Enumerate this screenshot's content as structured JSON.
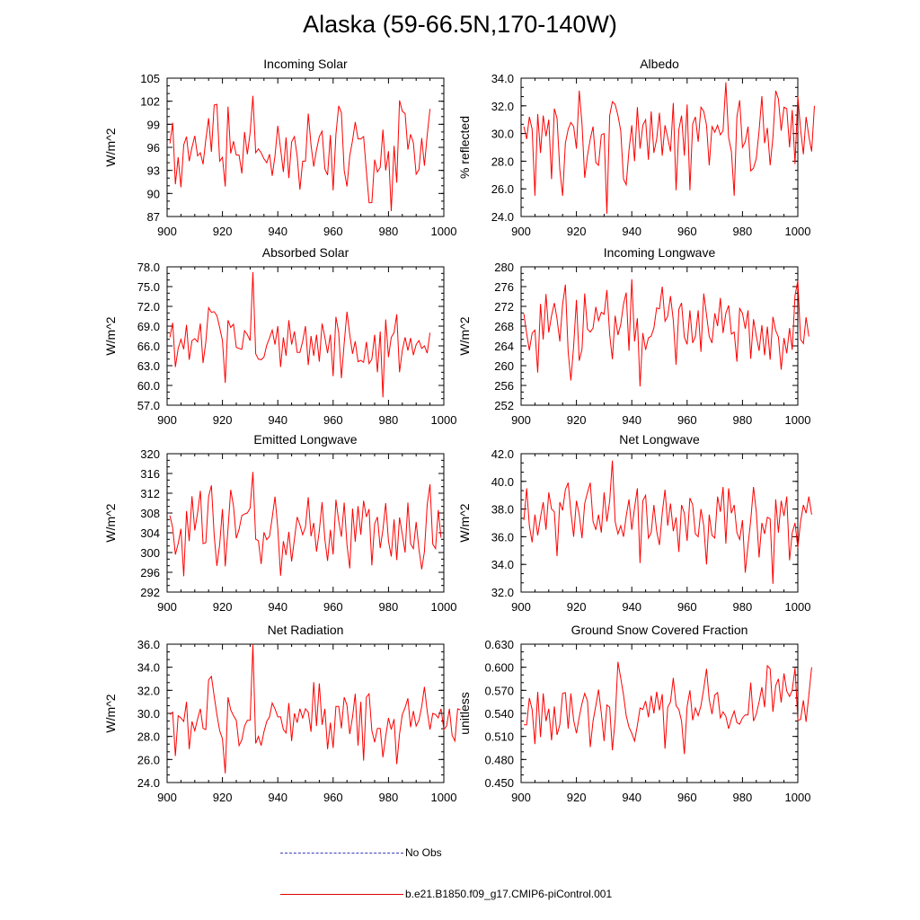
{
  "title": "Alaska (59-66.5N,170-140W)",
  "colors": {
    "series": "#ff0000",
    "obs": "#3b3bb8",
    "axis": "#000000"
  },
  "legend": {
    "obs_label": "No Obs",
    "model_label": "b.e21.B1850.f09_g17.CMIP6-piControl.001"
  },
  "chart_data": [
    {
      "type": "line",
      "title": "Incoming Solar",
      "ylabel": "W/m^2",
      "xlabel": "",
      "xlim": [
        900,
        1000
      ],
      "ylim": [
        87,
        105
      ],
      "xticks": [
        900,
        920,
        940,
        960,
        980,
        1000
      ],
      "xtick_labels": [
        "900",
        "920",
        "940",
        "960",
        "980",
        "1000"
      ],
      "yticks": [
        87,
        90,
        93,
        96,
        99,
        102,
        105
      ],
      "ytick_labels": [
        "87",
        "90",
        "93",
        "96",
        "99",
        "102",
        "105"
      ],
      "x_start": 901,
      "values": [
        96.5,
        99.2,
        91.2,
        94.7,
        90.8,
        96.3,
        97.4,
        94.2,
        96.0,
        97.5,
        94.9,
        95.3,
        93.8,
        97.0,
        99.8,
        95.4,
        101.5,
        101.6,
        94.2,
        94.7,
        90.9,
        101.3,
        95.2,
        96.8,
        95.0,
        95.0,
        92.6,
        98.0,
        95.1,
        97.9,
        102.7,
        95.3,
        95.8,
        95.3,
        94.5,
        94.0,
        95.1,
        92.3,
        94.9,
        98.8,
        95.8,
        92.8,
        97.3,
        92.0,
        96.7,
        97.4,
        94.8,
        90.5,
        94.2,
        94.2,
        100.4,
        96.3,
        93.5,
        95.7,
        97.4,
        98.1,
        93.2,
        92.4,
        97.6,
        90.4,
        97.7,
        101.4,
        100.5,
        93.0,
        90.9,
        94.9,
        96.9,
        99.3,
        97.1,
        97.1,
        97.4,
        92.9,
        88.8,
        88.8,
        94.4,
        92.8,
        93.4,
        98.3,
        93.0,
        95.5,
        87.7,
        96.2,
        91.4,
        102.1,
        100.7,
        100.4,
        95.7,
        97.7,
        96.6,
        92.5,
        93.1,
        97.2,
        93.6,
        97.6,
        101.0
      ]
    },
    {
      "type": "line",
      "title": "Albedo",
      "ylabel": "% reflected",
      "xlabel": "",
      "xlim": [
        900,
        1000
      ],
      "ylim": [
        24,
        34
      ],
      "xticks": [
        900,
        920,
        940,
        960,
        980,
        1000
      ],
      "xtick_labels": [
        "900",
        "920",
        "940",
        "960",
        "980",
        "1000"
      ],
      "yticks": [
        24,
        26,
        28,
        30,
        32,
        34
      ],
      "ytick_labels": [
        "24.0",
        "26.0",
        "28.0",
        "30.0",
        "32.0",
        "34.0"
      ],
      "x_start": 901,
      "values": [
        30.5,
        29.6,
        31.2,
        30.3,
        25.5,
        31.4,
        28.6,
        31.3,
        29.8,
        31.0,
        26.7,
        31.8,
        31.1,
        27.4,
        25.5,
        29.3,
        30.3,
        30.8,
        30.5,
        28.9,
        33.1,
        30.7,
        26.8,
        28.4,
        29.6,
        30.5,
        27.9,
        27.7,
        29.9,
        30.0,
        24.2,
        31.3,
        32.3,
        32.1,
        31.3,
        30.2,
        26.7,
        26.3,
        28.8,
        30.6,
        28.0,
        31.9,
        28.9,
        30.6,
        31.0,
        28.1,
        31.6,
        28.6,
        29.6,
        31.5,
        28.4,
        30.6,
        29.7,
        28.7,
        32.2,
        25.9,
        30.3,
        31.3,
        28.4,
        32.1,
        25.9,
        30.7,
        31.2,
        29.4,
        31.9,
        31.6,
        30.6,
        27.7,
        30.5,
        30.1,
        30.6,
        29.9,
        30.2,
        33.7,
        29.7,
        28.7,
        25.5,
        31.2,
        32.4,
        29.0,
        29.4,
        30.5,
        27.3,
        27.5,
        28.2,
        30.2,
        32.7,
        29.3,
        30.4,
        27.7,
        29.7,
        33.1,
        32.5,
        30.2,
        31.9,
        31.8,
        29.0,
        31.7,
        27.8,
        32.7,
        30.3,
        28.5,
        31.2,
        29.8,
        28.7,
        32.0
      ]
    },
    {
      "type": "line",
      "title": "Absorbed Solar",
      "ylabel": "W/m^2",
      "xlabel": "",
      "xlim": [
        900,
        1000
      ],
      "ylim": [
        57,
        78
      ],
      "xticks": [
        900,
        920,
        940,
        960,
        980,
        1000
      ],
      "xtick_labels": [
        "900",
        "920",
        "940",
        "960",
        "980",
        "1000"
      ],
      "yticks": [
        57,
        60,
        63,
        66,
        69,
        72,
        75,
        78
      ],
      "ytick_labels": [
        "57.0",
        "60.0",
        "63.0",
        "66.0",
        "69.0",
        "72.0",
        "75.0",
        "78.0"
      ],
      "x_start": 901,
      "values": [
        67.3,
        69.5,
        62.8,
        65.6,
        67.0,
        65.5,
        69.2,
        63.9,
        66.8,
        67.1,
        66.6,
        69.4,
        63.4,
        66.6,
        71.8,
        71.1,
        71.2,
        70.6,
        68.8,
        66.8,
        60.4,
        69.9,
        68.8,
        69.3,
        65.8,
        65.6,
        65.5,
        68.3,
        67.7,
        66.8,
        77.2,
        64.8,
        64.0,
        63.9,
        64.3,
        66.1,
        67.2,
        68.4,
        66.2,
        69.0,
        62.8,
        67.3,
        64.5,
        69.9,
        66.2,
        68.2,
        65.0,
        65.0,
        66.7,
        69.0,
        63.1,
        67.5,
        64.5,
        67.7,
        63.6,
        69.4,
        67.3,
        64.9,
        67.7,
        61.4,
        70.4,
        68.0,
        61.1,
        66.4,
        71.2,
        67.7,
        64.8,
        66.7,
        63.6,
        63.8,
        63.5,
        66.6,
        63.3,
        64.0,
        67.7,
        62.0,
        68.2,
        58.2,
        70.0,
        64.3,
        67.3,
        68.0,
        70.8,
        62.0,
        65.3,
        67.3,
        65.3,
        67.2,
        64.6,
        66.2,
        66.8,
        65.6,
        66.0,
        64.9,
        68.0
      ]
    },
    {
      "type": "line",
      "title": "Incoming Longwave",
      "ylabel": "W/m^2",
      "xlabel": "",
      "xlim": [
        900,
        1000
      ],
      "ylim": [
        252,
        280
      ],
      "xticks": [
        900,
        920,
        940,
        960,
        980,
        1000
      ],
      "xtick_labels": [
        "900",
        "920",
        "940",
        "960",
        "980",
        "1000"
      ],
      "yticks": [
        252,
        256,
        260,
        264,
        268,
        272,
        276,
        280
      ],
      "ytick_labels": [
        "252",
        "256",
        "260",
        "264",
        "268",
        "272",
        "276",
        "280"
      ],
      "x_start": 901,
      "values": [
        270.5,
        266.5,
        263.1,
        266.6,
        267.2,
        258.6,
        272.5,
        265.3,
        274.5,
        266.7,
        270.1,
        272.7,
        269.5,
        264.9,
        272.4,
        276.4,
        262.8,
        257.0,
        264.0,
        273.3,
        261.0,
        263.3,
        274.6,
        267.4,
        266.8,
        267.6,
        271.9,
        269.1,
        270.8,
        270.4,
        275.3,
        266.3,
        261.3,
        270.1,
        266.2,
        268.3,
        272.5,
        274.8,
        263.0,
        277.5,
        264.9,
        269.6,
        255.8,
        266.6,
        263.2,
        265.6,
        266.0,
        267.6,
        271.7,
        271.5,
        276.0,
        269.0,
        270.0,
        274.1,
        269.2,
        260.2,
        271.4,
        272.7,
        265.8,
        264.3,
        271.2,
        264.6,
        265.9,
        271.2,
        262.8,
        274.6,
        270.3,
        265.9,
        264.6,
        270.6,
        268.0,
        273.7,
        266.6,
        270.6,
        272.2,
        266.4,
        266.8,
        260.8,
        271.6,
        270.6,
        267.5,
        271.2,
        261.4,
        269.4,
        266.0,
        263.0,
        268.2,
        262.1,
        267.9,
        261.2,
        269.9,
        267.1,
        265.8,
        259.2,
        265.6,
        262.5,
        267.6,
        263.2,
        274.2,
        277.2,
        265.3,
        264.5,
        269.8,
        265.9
      ]
    },
    {
      "type": "line",
      "title": "Emitted Longwave",
      "ylabel": "W/m^2",
      "xlabel": "",
      "xlim": [
        900,
        1000
      ],
      "ylim": [
        292,
        320
      ],
      "xticks": [
        900,
        920,
        940,
        960,
        980,
        1000
      ],
      "xtick_labels": [
        "900",
        "920",
        "940",
        "960",
        "980",
        "1000"
      ],
      "yticks": [
        292,
        296,
        300,
        304,
        308,
        312,
        316,
        320
      ],
      "ytick_labels": [
        "292",
        "296",
        "300",
        "304",
        "308",
        "312",
        "316",
        "320"
      ],
      "x_start": 901,
      "values": [
        307.5,
        305.0,
        299.6,
        301.8,
        304.8,
        295.2,
        308.4,
        302.3,
        311.4,
        304.5,
        308.0,
        312.5,
        301.8,
        302.0,
        311.3,
        313.6,
        303.5,
        297.3,
        301.6,
        308.8,
        297.2,
        304.8,
        312.7,
        309.4,
        302.9,
        304.7,
        307.5,
        307.8,
        308.0,
        309.0,
        316.3,
        302.7,
        302.4,
        297.7,
        304.1,
        302.6,
        303.3,
        307.1,
        311.3,
        304.9,
        295.3,
        302.3,
        299.5,
        304.2,
        298.2,
        302.7,
        307.2,
        305.6,
        303.6,
        305.2,
        311.2,
        303.3,
        306.0,
        300.2,
        304.4,
        310.2,
        302.7,
        298.3,
        304.6,
        299.6,
        310.7,
        306.4,
        303.2,
        310.1,
        301.6,
        296.8,
        308.9,
        302.2,
        309.4,
        303.6,
        310.5,
        307.2,
        308.8,
        297.4,
        305.8,
        307.2,
        300.9,
        304.6,
        310.0,
        302.3,
        299.2,
        306.7,
        298.5,
        307.1,
        303.7,
        300.0,
        310.1,
        301.8,
        300.8,
        306.2,
        300.7,
        296.6,
        300.2,
        309.7,
        313.8,
        301.7,
        300.8,
        308.6,
        303.0
      ]
    },
    {
      "type": "line",
      "title": "Net Longwave",
      "ylabel": "W/m^2",
      "xlabel": "",
      "xlim": [
        900,
        1000
      ],
      "ylim": [
        32,
        42
      ],
      "xticks": [
        900,
        920,
        940,
        960,
        980,
        1000
      ],
      "xtick_labels": [
        "900",
        "920",
        "940",
        "960",
        "980",
        "1000"
      ],
      "yticks": [
        32,
        34,
        36,
        38,
        40,
        42
      ],
      "ytick_labels": [
        "32.0",
        "34.0",
        "36.0",
        "38.0",
        "40.0",
        "42.0"
      ],
      "x_start": 901,
      "values": [
        37.2,
        39.5,
        36.8,
        35.6,
        37.6,
        36.1,
        37.4,
        38.5,
        36.5,
        39.2,
        38.0,
        37.8,
        34.6,
        38.5,
        37.9,
        39.4,
        39.9,
        37.8,
        36.0,
        38.6,
        37.6,
        35.9,
        38.4,
        39.2,
        39.9,
        37.1,
        36.5,
        37.6,
        36.3,
        39.2,
        37.1,
        38.6,
        41.5,
        37.1,
        36.2,
        36.8,
        36.0,
        37.5,
        38.7,
        36.5,
        38.1,
        39.5,
        34.1,
        38.6,
        39.0,
        35.9,
        36.3,
        38.3,
        36.4,
        35.4,
        37.7,
        39.4,
        36.8,
        38.4,
        36.4,
        37.4,
        34.9,
        38.3,
        37.7,
        35.7,
        38.8,
        38.3,
        36.2,
        36.0,
        38.0,
        36.8,
        34.0,
        37.6,
        36.1,
        35.9,
        38.9,
        37.8,
        39.6,
        35.5,
        39.5,
        37.7,
        38.3,
        36.3,
        35.8,
        37.2,
        33.4,
        35.4,
        37.2,
        39.6,
        37.8,
        34.5,
        37.0,
        36.2,
        37.4,
        37.3,
        32.6,
        38.7,
        36.3,
        38.6,
        37.5,
        38.9,
        34.3,
        36.3,
        37.0,
        35.2,
        37.1,
        38.3,
        37.7,
        38.9,
        37.6
      ]
    },
    {
      "type": "line",
      "title": "Net Radiation",
      "ylabel": "W/m^2",
      "xlabel": "",
      "xlim": [
        900,
        1000
      ],
      "ylim": [
        24,
        36
      ],
      "xticks": [
        900,
        920,
        940,
        960,
        980,
        1000
      ],
      "xtick_labels": [
        "900",
        "920",
        "940",
        "960",
        "980",
        "1000"
      ],
      "yticks": [
        24,
        26,
        28,
        30,
        32,
        34,
        36
      ],
      "ytick_labels": [
        "24.0",
        "26.0",
        "28.0",
        "30.0",
        "32.0",
        "34.0",
        "36.0"
      ],
      "x_start": 901,
      "values": [
        29.9,
        30.1,
        26.3,
        29.8,
        29.6,
        29.3,
        31.0,
        26.9,
        29.3,
        28.5,
        29.5,
        30.4,
        28.7,
        28.6,
        32.9,
        33.2,
        31.5,
        29.9,
        28.5,
        27.8,
        24.8,
        31.4,
        30.3,
        29.8,
        29.4,
        27.2,
        27.7,
        28.9,
        29.4,
        29.4,
        36.0,
        27.4,
        28.0,
        27.2,
        28.4,
        29.3,
        29.7,
        30.9,
        30.4,
        29.7,
        29.7,
        28.6,
        28.3,
        30.9,
        27.6,
        30.0,
        29.2,
        30.4,
        29.6,
        30.4,
        30.1,
        28.4,
        32.7,
        28.9,
        32.6,
        29.0,
        30.4,
        26.9,
        29.2,
        27.0,
        30.6,
        30.6,
        28.7,
        31.4,
        30.7,
        28.2,
        29.7,
        31.7,
        27.2,
        31.0,
        25.9,
        31.4,
        31.7,
        28.5,
        27.5,
        28.7,
        28.7,
        26.2,
        28.0,
        29.6,
        28.6,
        29.5,
        25.6,
        28.2,
        29.9,
        30.5,
        31.3,
        28.8,
        30.2,
        28.9,
        29.4,
        30.6,
        32.3,
        30.2,
        28.6,
        30.0,
        29.9,
        29.6,
        30.4,
        28.6,
        28.9,
        30.4,
        28.1,
        27.6,
        30.4,
        30.3
      ]
    },
    {
      "type": "line",
      "title": "Ground Snow Covered Fraction",
      "ylabel": "unitless",
      "xlabel": "",
      "xlim": [
        900,
        1000
      ],
      "ylim": [
        0.45,
        0.63
      ],
      "xticks": [
        900,
        920,
        940,
        960,
        980,
        1000
      ],
      "xtick_labels": [
        "900",
        "920",
        "940",
        "960",
        "980",
        "1000"
      ],
      "yticks": [
        0.45,
        0.48,
        0.51,
        0.54,
        0.57,
        0.6,
        0.63
      ],
      "ytick_labels": [
        "0.450",
        "0.480",
        "0.510",
        "0.540",
        "0.570",
        "0.600",
        "0.630"
      ],
      "x_start": 901,
      "values": [
        0.525,
        0.525,
        0.56,
        0.545,
        0.5,
        0.568,
        0.509,
        0.566,
        0.53,
        0.546,
        0.505,
        0.549,
        0.512,
        0.525,
        0.566,
        0.567,
        0.52,
        0.566,
        0.531,
        0.514,
        0.535,
        0.553,
        0.566,
        0.556,
        0.496,
        0.53,
        0.55,
        0.571,
        0.54,
        0.504,
        0.551,
        0.548,
        0.492,
        0.532,
        0.607,
        0.586,
        0.564,
        0.537,
        0.522,
        0.514,
        0.504,
        0.524,
        0.547,
        0.545,
        0.556,
        0.535,
        0.563,
        0.54,
        0.568,
        0.544,
        0.565,
        0.494,
        0.548,
        0.555,
        0.586,
        0.55,
        0.545,
        0.53,
        0.487,
        0.549,
        0.57,
        0.531,
        0.547,
        0.537,
        0.55,
        0.572,
        0.598,
        0.558,
        0.539,
        0.564,
        0.567,
        0.534,
        0.542,
        0.536,
        0.52,
        0.533,
        0.543,
        0.528,
        0.526,
        0.534,
        0.538,
        0.538,
        0.58,
        0.53,
        0.539,
        0.555,
        0.574,
        0.548,
        0.602,
        0.598,
        0.542,
        0.576,
        0.585,
        0.554,
        0.592,
        0.569,
        0.562,
        0.57,
        0.599,
        0.531,
        0.532,
        0.557,
        0.529,
        0.564,
        0.6
      ]
    }
  ]
}
